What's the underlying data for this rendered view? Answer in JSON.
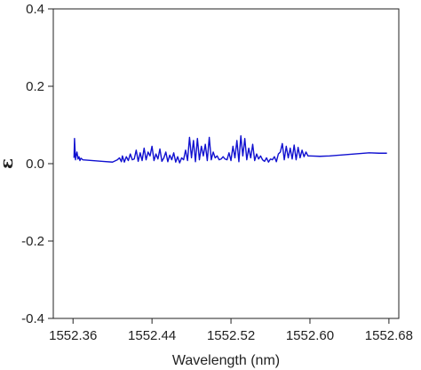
{
  "chart_data": {
    "type": "line",
    "title": "",
    "xlabel": "Wavelength (nm)",
    "ylabel": "ε",
    "xlim": [
      1552.34,
      1552.69
    ],
    "ylim": [
      -0.4,
      0.4
    ],
    "x_ticks": [
      1552.36,
      1552.44,
      1552.52,
      1552.6,
      1552.68
    ],
    "x_tick_labels": [
      "1552.36",
      "1552.44",
      "1552.52",
      "1552.60",
      "1552.68"
    ],
    "y_ticks": [
      -0.4,
      -0.2,
      0.0,
      0.2,
      0.4
    ],
    "y_tick_labels": [
      "-0.4",
      "-0.2",
      "0.0",
      "0.2",
      "0.4"
    ],
    "grid": false,
    "legend": false,
    "color": "#1010d0",
    "series": [
      {
        "x": [
          1552.361,
          1552.3615,
          1552.3625,
          1552.363,
          1552.364,
          1552.365,
          1552.366,
          1552.367,
          1552.368,
          1552.37,
          1552.38,
          1552.39,
          1552.4,
          1552.405,
          1552.407,
          1552.409,
          1552.41,
          1552.412,
          1552.414,
          1552.416,
          1552.418,
          1552.42,
          1552.422,
          1552.424,
          1552.426,
          1552.428,
          1552.43,
          1552.432,
          1552.434,
          1552.436,
          1552.438,
          1552.44,
          1552.442,
          1552.444,
          1552.446,
          1552.448,
          1552.45,
          1552.452,
          1552.454,
          1552.456,
          1552.458,
          1552.46,
          1552.462,
          1552.464,
          1552.466,
          1552.468,
          1552.47,
          1552.472,
          1552.474,
          1552.476,
          1552.478,
          1552.48,
          1552.482,
          1552.484,
          1552.486,
          1552.488,
          1552.49,
          1552.492,
          1552.494,
          1552.496,
          1552.498,
          1552.5,
          1552.502,
          1552.504,
          1552.506,
          1552.508,
          1552.51,
          1552.512,
          1552.514,
          1552.516,
          1552.518,
          1552.52,
          1552.522,
          1552.524,
          1552.526,
          1552.528,
          1552.53,
          1552.532,
          1552.534,
          1552.536,
          1552.538,
          1552.54,
          1552.542,
          1552.544,
          1552.546,
          1552.548,
          1552.55,
          1552.552,
          1552.554,
          1552.556,
          1552.558,
          1552.56,
          1552.562,
          1552.564,
          1552.566,
          1552.568,
          1552.57,
          1552.572,
          1552.574,
          1552.576,
          1552.578,
          1552.58,
          1552.582,
          1552.584,
          1552.586,
          1552.588,
          1552.59,
          1552.592,
          1552.594,
          1552.596,
          1552.598,
          1552.6,
          1552.61,
          1552.62,
          1552.63,
          1552.64,
          1552.65,
          1552.66,
          1552.67,
          1552.678
        ],
        "y": [
          0.015,
          0.065,
          0.01,
          0.02,
          0.03,
          0.012,
          0.018,
          0.008,
          0.014,
          0.01,
          0.008,
          0.006,
          0.004,
          0.01,
          0.015,
          0.005,
          0.02,
          0.004,
          0.018,
          0.008,
          0.025,
          0.01,
          0.012,
          0.035,
          0.006,
          0.028,
          0.008,
          0.04,
          0.01,
          0.03,
          0.02,
          0.045,
          0.008,
          0.025,
          0.012,
          0.038,
          0.006,
          0.015,
          0.03,
          0.005,
          0.022,
          0.01,
          0.028,
          0.004,
          0.018,
          0.002,
          0.015,
          0.01,
          0.035,
          0.008,
          0.068,
          0.015,
          0.06,
          0.005,
          0.065,
          0.01,
          0.045,
          0.02,
          0.05,
          0.008,
          0.068,
          0.01,
          0.03,
          0.015,
          0.02,
          0.01,
          0.012,
          0.018,
          0.012,
          0.01,
          0.028,
          0.008,
          0.045,
          0.015,
          0.06,
          0.005,
          0.072,
          0.02,
          0.065,
          0.01,
          0.04,
          0.015,
          0.05,
          0.008,
          0.025,
          0.012,
          0.02,
          0.01,
          0.006,
          0.015,
          0.004,
          0.012,
          0.01,
          0.018,
          0.005,
          0.025,
          0.03,
          0.052,
          0.01,
          0.045,
          0.015,
          0.04,
          0.012,
          0.048,
          0.01,
          0.042,
          0.015,
          0.035,
          0.018,
          0.03,
          0.02,
          0.02,
          0.019,
          0.02,
          0.022,
          0.024,
          0.026,
          0.028,
          0.027,
          0.027
        ]
      }
    ]
  }
}
